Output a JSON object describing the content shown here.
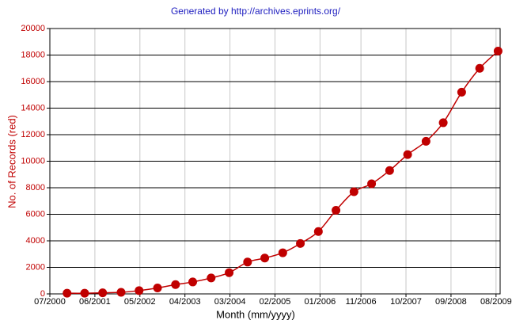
{
  "chart_data": {
    "type": "line",
    "title": "Generated by http://archives.eprints.org/",
    "x_label": "Month (mm/yyyy)",
    "y_label": "No. of Records (red)",
    "x": [
      4.2,
      8.5,
      12.9,
      17.4,
      21.8,
      26.3,
      30.7,
      34.9,
      39.4,
      43.8,
      48.3,
      52.5,
      56.9,
      61.2,
      65.6,
      69.9,
      74.3,
      78.6,
      83.0,
      87.4,
      91.9,
      96.1,
      100.6,
      105.0,
      109.5
    ],
    "series": [
      {
        "name": "No. of Records",
        "color": "#c00000",
        "values": [
          50,
          50,
          80,
          120,
          250,
          450,
          700,
          900,
          1200,
          1600,
          2400,
          2700,
          3100,
          3800,
          4700,
          6300,
          7700,
          8300,
          9300,
          10500,
          11500,
          12900,
          15200,
          17000,
          18300
        ]
      }
    ],
    "xlim": [
      0,
      110
    ],
    "xticks": [
      {
        "value": 0,
        "label": "07/2000"
      },
      {
        "value": 11,
        "label": "06/2001"
      },
      {
        "value": 22,
        "label": "05/2002"
      },
      {
        "value": 33,
        "label": "04/2003"
      },
      {
        "value": 44,
        "label": "03/2004"
      },
      {
        "value": 55,
        "label": "02/2005"
      },
      {
        "value": 66,
        "label": "01/2006"
      },
      {
        "value": 76,
        "label": "11/2006"
      },
      {
        "value": 87,
        "label": "10/2007"
      },
      {
        "value": 98,
        "label": "09/2008"
      },
      {
        "value": 109,
        "label": "08/2009"
      }
    ],
    "ylim": [
      0,
      20000
    ],
    "yticks": [
      0,
      2000,
      4000,
      6000,
      8000,
      10000,
      12000,
      14000,
      16000,
      18000,
      20000
    ],
    "grid": true
  }
}
